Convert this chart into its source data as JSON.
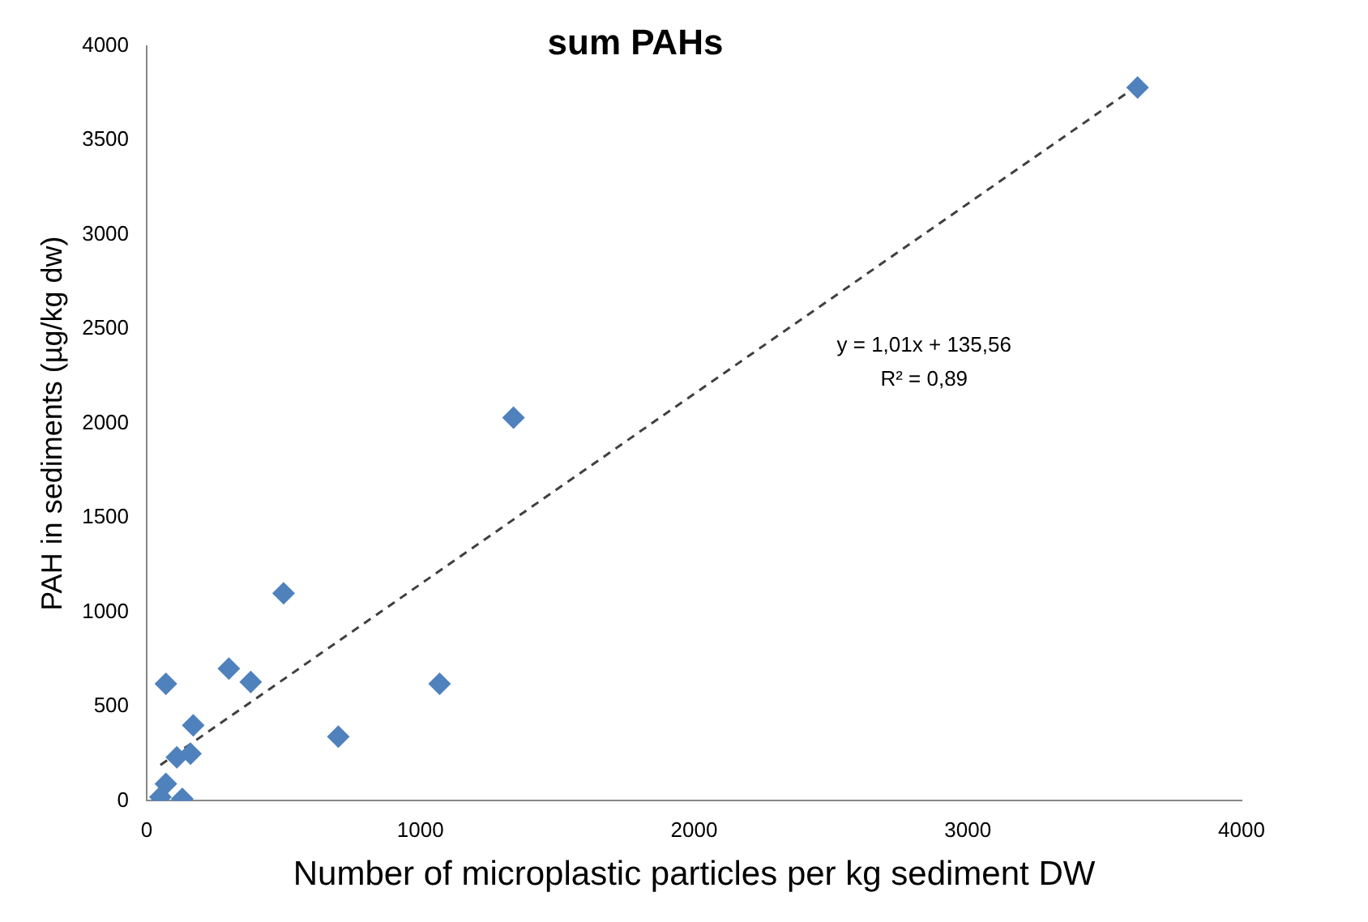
{
  "chart_data": {
    "type": "scatter",
    "title": "sum PAHs",
    "xlabel": "Number of microplastic particles per kg sediment DW",
    "ylabel": "PAH in sediments (µg/kg dw)",
    "annotations": [
      "y = 1,01x + 135,56",
      "R² = 0,89"
    ],
    "xlim": [
      0,
      4000
    ],
    "xticks": [
      0,
      1000,
      2000,
      3000,
      4000
    ],
    "ylim": [
      0,
      4000
    ],
    "yticks": [
      0,
      500,
      1000,
      1500,
      2000,
      2500,
      3000,
      3500,
      4000
    ],
    "grid": false,
    "legend": false,
    "marker": "diamond",
    "series": [
      {
        "type": "scatter",
        "color": "#4f81bd",
        "x": [
          3620,
          1340,
          500,
          70,
          300,
          380,
          1070,
          700,
          170,
          110,
          160,
          70,
          50,
          130
        ],
        "values": [
          3780,
          2030,
          1100,
          620,
          700,
          630,
          620,
          340,
          400,
          230,
          250,
          90,
          20,
          10
        ]
      },
      {
        "type": "line",
        "color": "#404040",
        "line_style": "dashed",
        "marker": "none",
        "x": [
          50,
          3620
        ],
        "values": [
          190,
          3790
        ]
      }
    ]
  }
}
